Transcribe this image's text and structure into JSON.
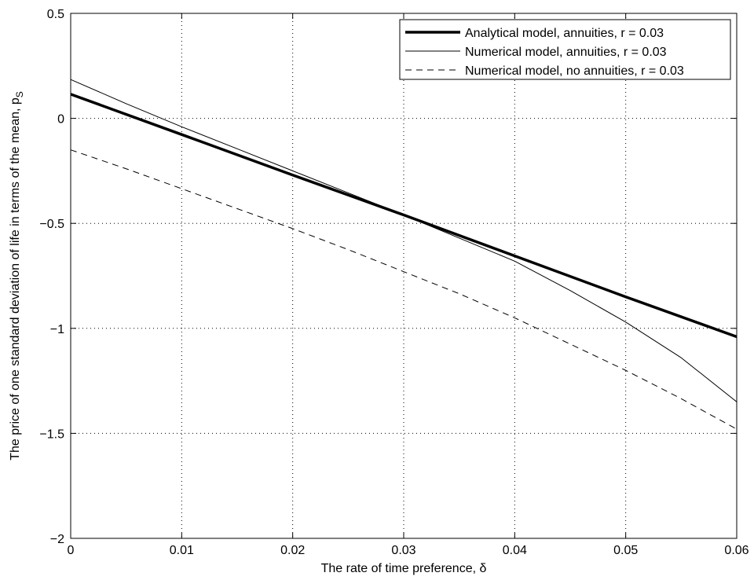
{
  "chart_data": {
    "type": "line",
    "xlabel": "The rate of time preference, δ",
    "ylabel_main": "The price of one standard deviation of life in terms of the mean, p",
    "ylabel_subscript": "S",
    "xlim": [
      0,
      0.06
    ],
    "ylim": [
      -2,
      0.5
    ],
    "x_ticks": [
      0,
      0.01,
      0.02,
      0.03,
      0.04,
      0.05,
      0.06
    ],
    "x_tick_labels": [
      "0",
      "0.01",
      "0.02",
      "0.03",
      "0.04",
      "0.05",
      "0.06"
    ],
    "y_ticks": [
      0.5,
      0,
      -0.5,
      -1,
      -1.5,
      -2
    ],
    "y_tick_labels": [
      "0.5",
      "0",
      "-0.5",
      "-1",
      "-1.5",
      "-2"
    ],
    "grid": true,
    "grid_style": "dotted",
    "legend_position": "top-right",
    "series": [
      {
        "name": "Analytical model, annuities, r = 0.03",
        "style": "thick-solid",
        "color": "#000000",
        "x": [
          0,
          0.01,
          0.02,
          0.03,
          0.04,
          0.05,
          0.06
        ],
        "y": [
          0.115,
          -0.077,
          -0.27,
          -0.46,
          -0.655,
          -0.85,
          -1.04
        ]
      },
      {
        "name": "Numerical model, annuities, r = 0.03",
        "style": "thin-solid",
        "color": "#000000",
        "x": [
          0,
          0.005,
          0.01,
          0.015,
          0.02,
          0.025,
          0.03,
          0.035,
          0.04,
          0.045,
          0.05,
          0.055,
          0.06
        ],
        "y": [
          0.185,
          0.07,
          -0.04,
          -0.145,
          -0.25,
          -0.355,
          -0.46,
          -0.57,
          -0.68,
          -0.82,
          -0.97,
          -1.14,
          -1.35
        ]
      },
      {
        "name": "Numerical model, no annuities, r = 0.03",
        "style": "dashed",
        "color": "#000000",
        "x": [
          0,
          0.005,
          0.01,
          0.015,
          0.02,
          0.025,
          0.03,
          0.035,
          0.04,
          0.045,
          0.05,
          0.055,
          0.06
        ],
        "y": [
          -0.15,
          -0.24,
          -0.335,
          -0.43,
          -0.525,
          -0.625,
          -0.73,
          -0.835,
          -0.95,
          -1.075,
          -1.2,
          -1.335,
          -1.48
        ]
      }
    ]
  }
}
